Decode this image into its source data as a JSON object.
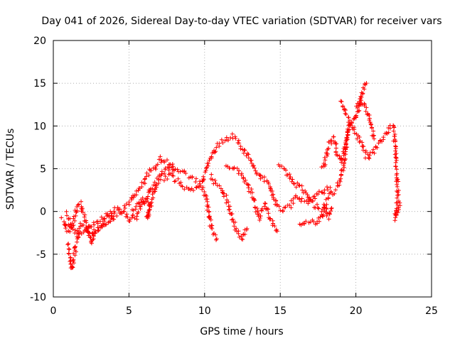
{
  "chart_data": {
    "type": "scatter",
    "title": "Day 041 of 2026, Sidereal Day-to-day VTEC variation (SDTVAR) for receiver vars",
    "xlabel": "GPS time / hours",
    "ylabel": "SDTVAR / TECUs",
    "xlim": [
      0,
      25
    ],
    "ylim": [
      -10,
      20
    ],
    "xticks": [
      0,
      5,
      10,
      15,
      20,
      25
    ],
    "yticks": [
      -10,
      -5,
      0,
      5,
      10,
      15,
      20
    ],
    "grid": true,
    "marker": "+",
    "series_color": "#ff0000",
    "series": [
      {
        "name": "SDTVAR",
        "approximate_traces": [
          [
            [
              0.6,
              -0.8
            ],
            [
              0.8,
              -1.8
            ],
            [
              1.0,
              -2.4
            ],
            [
              1.3,
              -1.4
            ],
            [
              1.6,
              0.8
            ],
            [
              1.8,
              1.0
            ],
            [
              2.0,
              -0.5
            ],
            [
              2.2,
              -1.8
            ],
            [
              2.5,
              -2.6
            ],
            [
              3.0,
              -2.2
            ],
            [
              3.6,
              -1.3
            ],
            [
              4.2,
              -0.3
            ],
            [
              4.8,
              0.5
            ],
            [
              5.2,
              1.3
            ],
            [
              5.6,
              2.6
            ],
            [
              6.0,
              3.6
            ],
            [
              6.4,
              4.8
            ],
            [
              6.8,
              5.4
            ],
            [
              7.2,
              6.3
            ],
            [
              7.6,
              5.8
            ],
            [
              8.0,
              5.1
            ],
            [
              8.5,
              4.6
            ],
            [
              9.0,
              3.9
            ],
            [
              9.5,
              3.6
            ],
            [
              9.8,
              3.3
            ],
            [
              10.2,
              5.5
            ],
            [
              10.6,
              7.0
            ],
            [
              11.0,
              8.0
            ],
            [
              11.4,
              8.5
            ],
            [
              11.8,
              8.8
            ],
            [
              12.2,
              8.3
            ],
            [
              12.5,
              7.4
            ],
            [
              12.9,
              6.4
            ],
            [
              13.3,
              5.2
            ],
            [
              13.7,
              4.1
            ],
            [
              14.0,
              3.6
            ],
            [
              14.4,
              2.6
            ],
            [
              14.8,
              0.5
            ],
            [
              15.2,
              0.0
            ],
            [
              15.6,
              0.6
            ],
            [
              16.0,
              1.6
            ],
            [
              16.4,
              1.4
            ],
            [
              16.8,
              1.0
            ],
            [
              17.2,
              1.5
            ],
            [
              17.6,
              2.2
            ],
            [
              18.0,
              2.5
            ],
            [
              18.3,
              2.8
            ]
          ],
          [
            [
              0.9,
              -0.2
            ],
            [
              1.1,
              -1.5
            ],
            [
              1.4,
              -2.4
            ],
            [
              1.8,
              -2.7
            ],
            [
              2.3,
              -2.1
            ],
            [
              2.8,
              -1.3
            ],
            [
              3.2,
              -0.8
            ],
            [
              3.8,
              -0.1
            ],
            [
              4.3,
              0.4
            ],
            [
              4.6,
              0.0
            ],
            [
              5.0,
              -1.0
            ],
            [
              5.5,
              -0.6
            ],
            [
              5.8,
              0.5
            ],
            [
              6.2,
              1.8
            ],
            [
              6.6,
              3.0
            ],
            [
              7.0,
              3.8
            ],
            [
              7.4,
              3.9
            ],
            [
              7.8,
              4.2
            ],
            [
              8.3,
              3.4
            ],
            [
              8.7,
              2.8
            ],
            [
              9.2,
              2.4
            ],
            [
              9.6,
              2.9
            ],
            [
              10.0,
              2.4
            ],
            [
              10.2,
              0.5
            ],
            [
              10.4,
              -1.5
            ],
            [
              10.6,
              -2.7
            ],
            [
              10.8,
              -3.2
            ]
          ],
          [
            [
              1.0,
              -4.0
            ],
            [
              1.2,
              -6.9
            ],
            [
              1.4,
              -5.0
            ],
            [
              1.6,
              -3.0
            ],
            [
              1.8,
              -1.5
            ],
            [
              2.2,
              -2.0
            ],
            [
              2.5,
              -3.7
            ],
            [
              2.8,
              -2.2
            ],
            [
              3.2,
              -1.6
            ],
            [
              3.6,
              -0.4
            ],
            [
              4.0,
              -0.9
            ]
          ],
          [
            [
              5.2,
              -0.2
            ],
            [
              5.6,
              0.6
            ],
            [
              6.0,
              1.5
            ],
            [
              6.4,
              0.9
            ],
            [
              6.2,
              -0.9
            ],
            [
              6.7,
              2.4
            ],
            [
              7.1,
              4.2
            ],
            [
              7.5,
              5.1
            ],
            [
              7.9,
              4.9
            ]
          ],
          [
            [
              10.4,
              4.0
            ],
            [
              10.8,
              3.2
            ],
            [
              11.2,
              2.4
            ],
            [
              11.6,
              0.6
            ],
            [
              11.9,
              -1.4
            ],
            [
              12.2,
              -2.4
            ],
            [
              12.5,
              -3.2
            ],
            [
              12.8,
              -2.0
            ]
          ],
          [
            [
              11.4,
              5.5
            ],
            [
              11.9,
              5.0
            ],
            [
              12.4,
              4.4
            ],
            [
              12.9,
              3.0
            ],
            [
              13.3,
              1.2
            ],
            [
              13.6,
              -0.9
            ],
            [
              14.0,
              0.8
            ],
            [
              14.4,
              -1.0
            ],
            [
              14.8,
              -2.3
            ]
          ],
          [
            [
              14.9,
              5.4
            ],
            [
              15.3,
              4.8
            ],
            [
              15.7,
              3.9
            ],
            [
              16.1,
              3.0
            ],
            [
              16.5,
              2.6
            ],
            [
              16.9,
              1.4
            ],
            [
              17.3,
              0.6
            ],
            [
              17.7,
              0.2
            ],
            [
              18.0,
              1.0
            ],
            [
              18.3,
              2.0
            ],
            [
              18.6,
              2.4
            ],
            [
              18.8,
              2.9
            ],
            [
              19.1,
              4.6
            ],
            [
              19.3,
              7.2
            ],
            [
              19.6,
              10.2
            ],
            [
              19.9,
              10.6
            ],
            [
              20.2,
              12.0
            ],
            [
              20.5,
              14.4
            ],
            [
              20.7,
              15.0
            ]
          ],
          [
            [
              16.3,
              -1.6
            ],
            [
              16.5,
              -1.2
            ],
            [
              17.1,
              -1.2
            ],
            [
              17.4,
              -1.6
            ],
            [
              17.8,
              -0.6
            ],
            [
              18.0,
              0.6
            ],
            [
              18.2,
              -0.6
            ],
            [
              18.4,
              0.4
            ]
          ],
          [
            [
              17.8,
              5.0
            ],
            [
              18.0,
              6.2
            ],
            [
              18.2,
              7.8
            ],
            [
              18.5,
              8.6
            ],
            [
              18.8,
              6.6
            ],
            [
              19.0,
              5.8
            ],
            [
              19.2,
              6.7
            ],
            [
              19.4,
              9.0
            ],
            [
              19.6,
              10.2
            ]
          ],
          [
            [
              20.0,
              12.0
            ],
            [
              20.3,
              13.2
            ],
            [
              20.6,
              12.2
            ],
            [
              20.8,
              11.2
            ],
            [
              21.0,
              10.0
            ],
            [
              21.2,
              8.5
            ]
          ],
          [
            [
              19.0,
              12.8
            ],
            [
              20.8,
              6.2
            ],
            [
              22.4,
              10.0
            ],
            [
              22.5,
              9.6
            ],
            [
              22.7,
              4.0
            ],
            [
              22.8,
              2.0
            ],
            [
              22.7,
              0.2
            ],
            [
              22.6,
              -0.8
            ],
            [
              22.9,
              1.0
            ]
          ]
        ]
      }
    ]
  }
}
